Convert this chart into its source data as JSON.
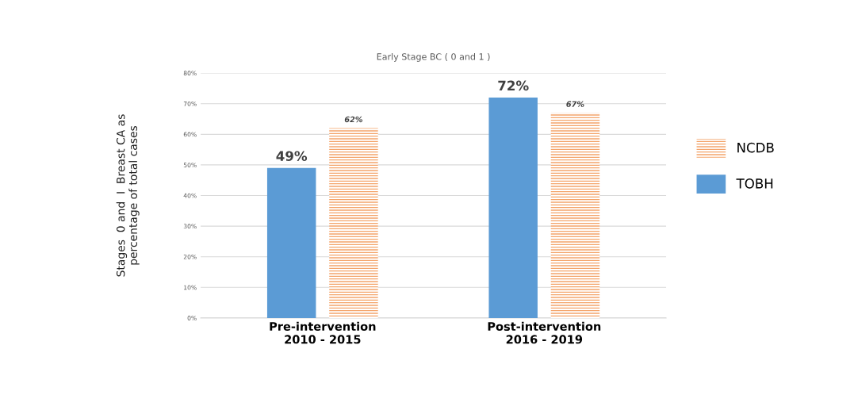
{
  "chart_data": {
    "type": "bar",
    "title": "Early Stage BC ( 0 and 1 )",
    "ylabel": "Stages  0 and  I  Breast CA as\npercentage of total cases",
    "categories": [
      "Pre-intervention\n2010 - 2015",
      "Post-intervention\n2016 - 2019"
    ],
    "series": [
      {
        "name": "TOBH",
        "color": "#5b9bd5",
        "values": [
          49,
          72
        ],
        "value_labels": [
          "49%",
          "72%"
        ]
      },
      {
        "name": "NCDB",
        "color": "#f4a46a",
        "values": [
          62,
          67
        ],
        "value_labels": [
          "62%",
          "67%"
        ]
      }
    ],
    "ylim": [
      0,
      80
    ],
    "yticks": [
      {
        "value": 0,
        "label": "0%"
      },
      {
        "value": 10,
        "label": "10%"
      },
      {
        "value": 20,
        "label": "20%"
      },
      {
        "value": 30,
        "label": "30%"
      },
      {
        "value": 40,
        "label": "40%"
      },
      {
        "value": 50,
        "label": "50%"
      },
      {
        "value": 60,
        "label": "60%"
      },
      {
        "value": 70,
        "label": "70%"
      },
      {
        "value": 80,
        "label": "80%"
      }
    ],
    "grid": "y",
    "legend": "right"
  }
}
